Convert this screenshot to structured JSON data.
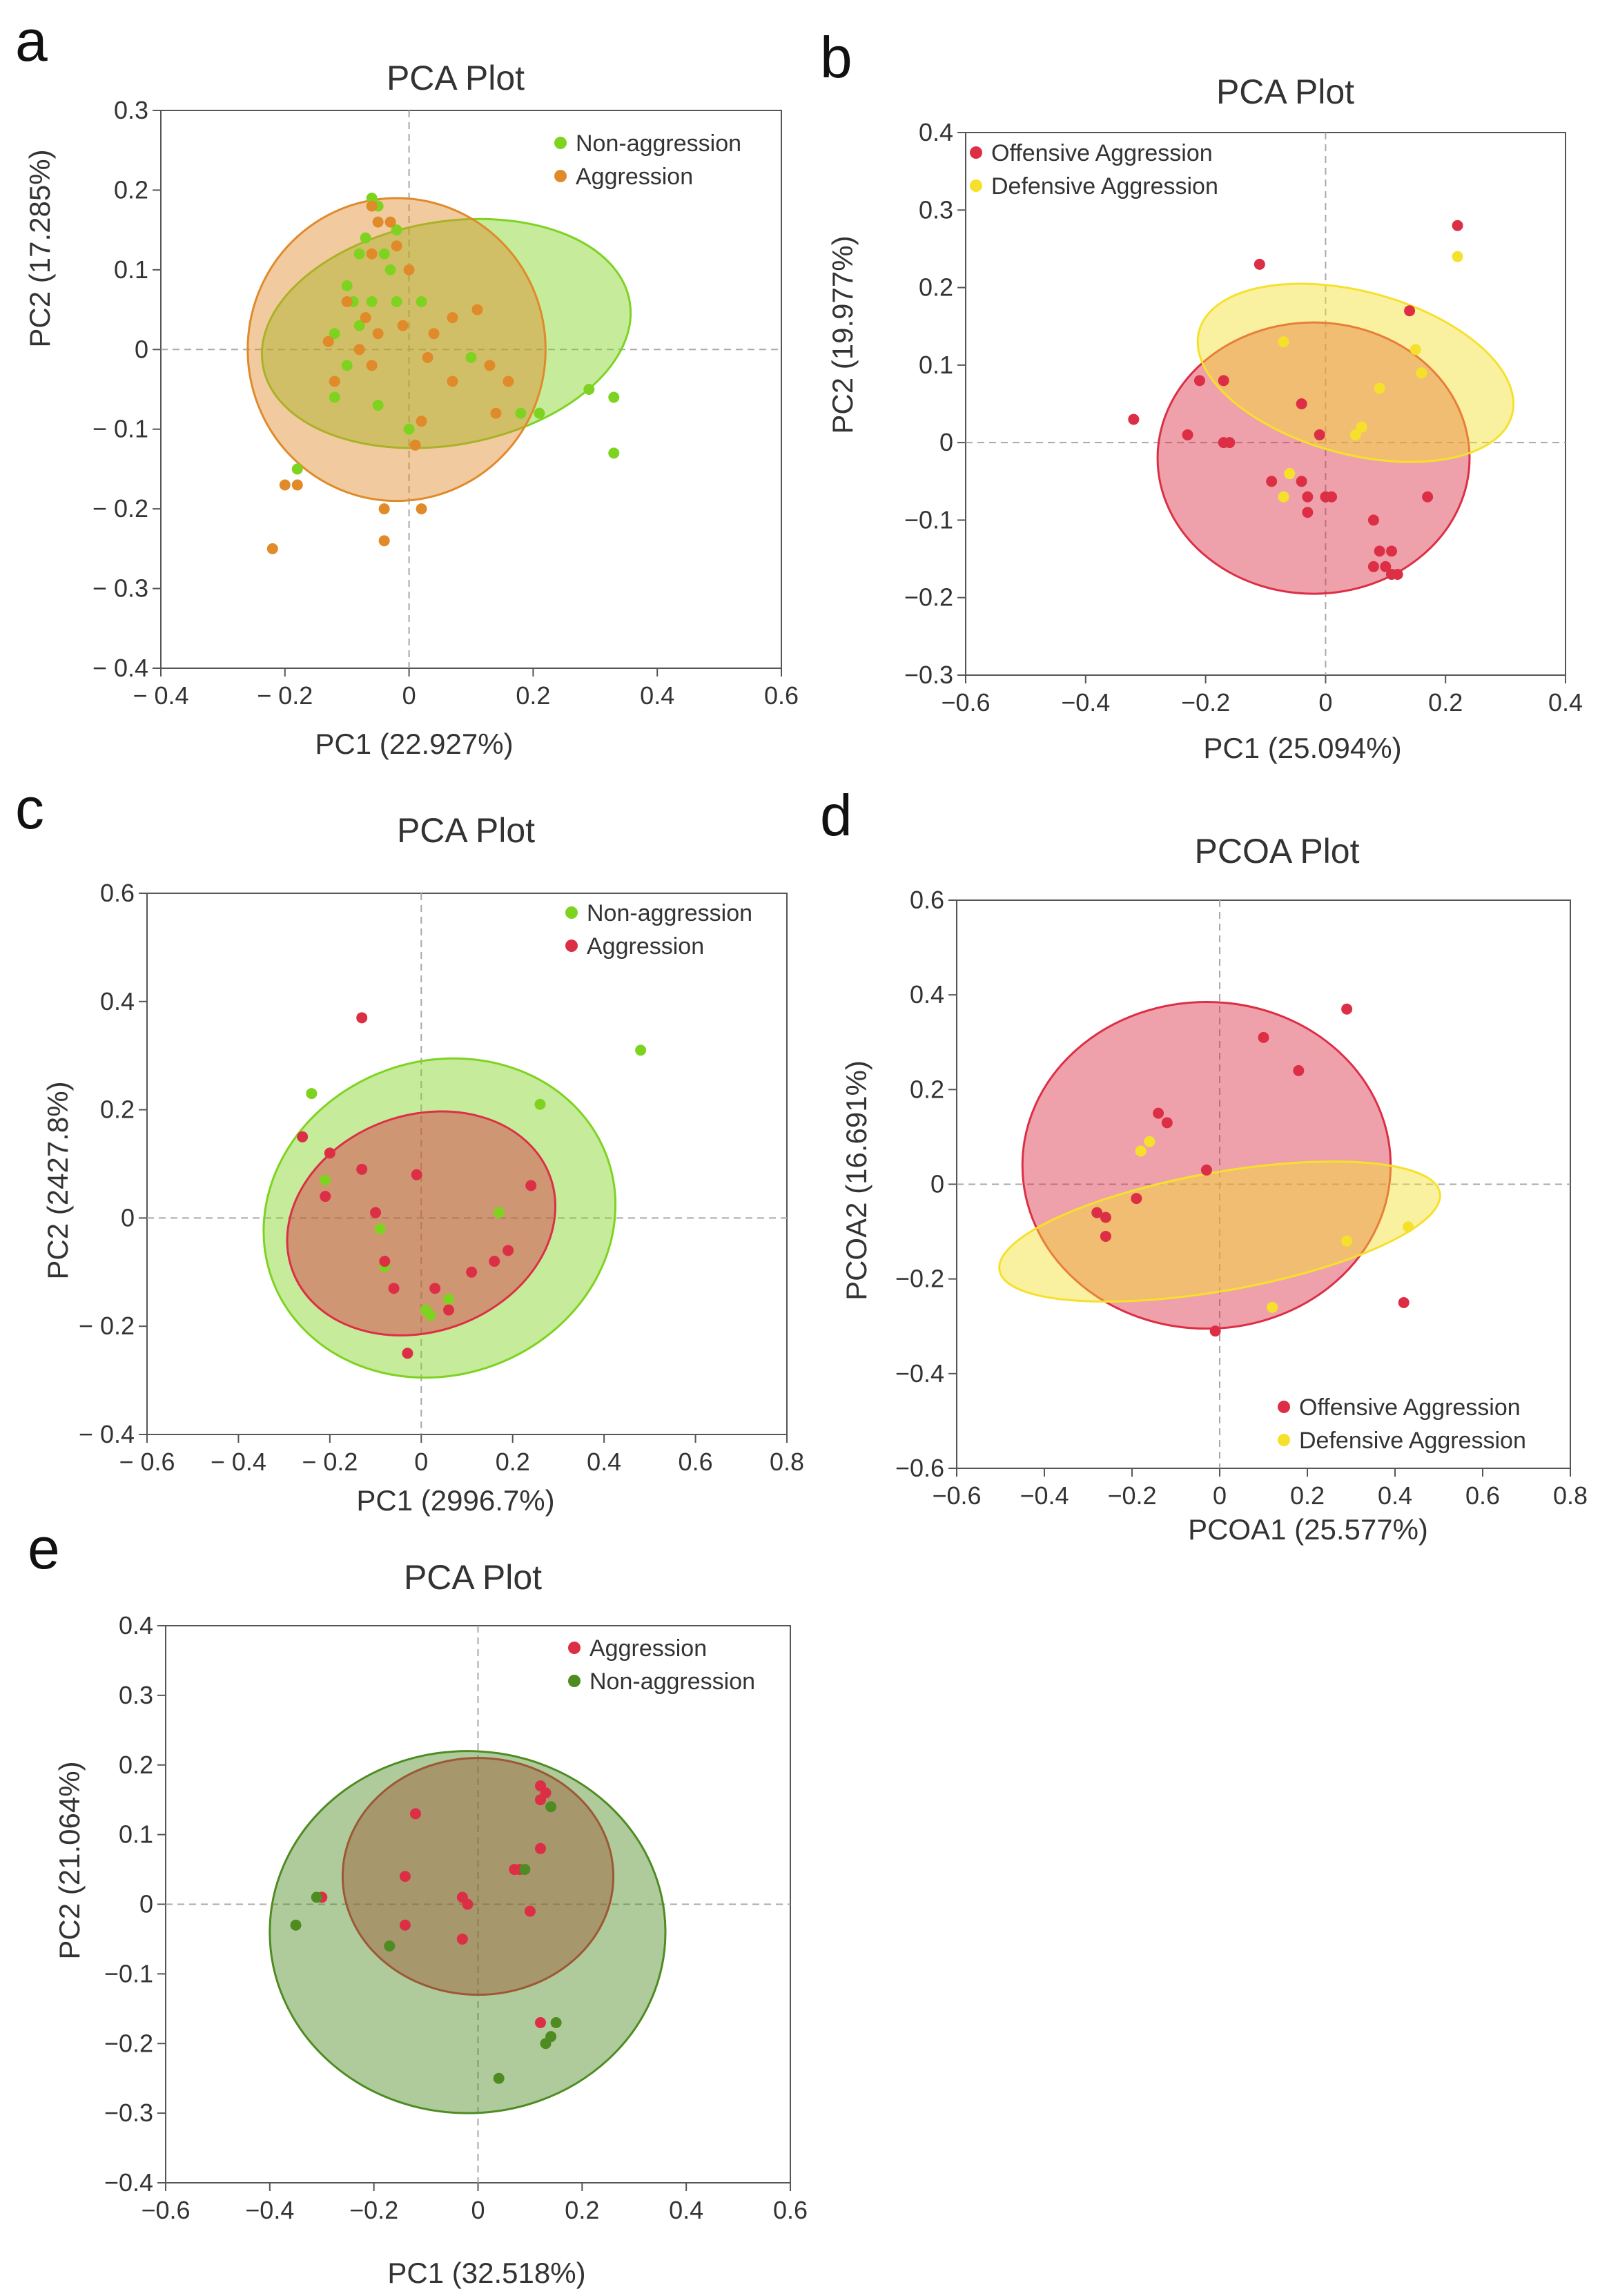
{
  "colors": {
    "green": "#7ed321",
    "orange": "#e08a2a",
    "red": "#dc2f45",
    "yellow": "#f5e12c",
    "dark_green": "#4e8c22",
    "axis": "#555555",
    "origin_line": "#a8a8a8"
  },
  "chart_data": [
    {
      "panel_label": "a",
      "type": "scatter",
      "title": "PCA  Plot",
      "xlabel": "PC1  (22.927%)",
      "ylabel": "PC2  (17.285%)",
      "xlim": [
        -0.4,
        0.6
      ],
      "ylim": [
        -0.4,
        0.3
      ],
      "xticks": [
        -0.4,
        -0.2,
        0,
        0.2,
        0.4,
        0.6
      ],
      "xtick_labels": [
        "− 0.4",
        "− 0.2",
        "0",
        "0.2",
        "0.4",
        "0.6"
      ],
      "yticks": [
        0.3,
        0.2,
        0.1,
        0,
        -0.1,
        -0.2,
        -0.3,
        -0.4
      ],
      "ytick_labels": [
        "0.3",
        "0.2",
        "0.1",
        "0",
        "− 0.1",
        "− 0.2",
        "− 0.3",
        "− 0.4"
      ],
      "legend_position": "top-right",
      "series": [
        {
          "name": "Non-aggression",
          "color": "#7ed321",
          "ellipse": {
            "cx": 0.06,
            "cy": 0.02,
            "rx": 0.3,
            "ry": 0.14,
            "angle": -10
          },
          "points": [
            [
              -0.06,
              0.19
            ],
            [
              -0.05,
              0.18
            ],
            [
              -0.07,
              0.14
            ],
            [
              -0.04,
              0.12
            ],
            [
              -0.02,
              0.15
            ],
            [
              -0.08,
              0.12
            ],
            [
              -0.1,
              0.08
            ],
            [
              -0.03,
              0.1
            ],
            [
              -0.06,
              0.06
            ],
            [
              -0.09,
              0.06
            ],
            [
              -0.08,
              0.03
            ],
            [
              -0.02,
              0.06
            ],
            [
              0.02,
              0.06
            ],
            [
              -0.12,
              0.02
            ],
            [
              -0.1,
              -0.02
            ],
            [
              -0.12,
              -0.06
            ],
            [
              -0.05,
              -0.07
            ],
            [
              0,
              -0.1
            ],
            [
              0.1,
              -0.01
            ],
            [
              0.18,
              -0.08
            ],
            [
              0.21,
              -0.08
            ],
            [
              0.29,
              -0.05
            ],
            [
              0.33,
              -0.06
            ],
            [
              0.33,
              -0.13
            ],
            [
              -0.18,
              -0.15
            ]
          ]
        },
        {
          "name": "Aggression",
          "color": "#e08a2a",
          "ellipse": {
            "cx": -0.02,
            "cy": 0.0,
            "rx": 0.24,
            "ry": 0.19,
            "angle": 0
          },
          "points": [
            [
              -0.06,
              0.18
            ],
            [
              -0.03,
              0.16
            ],
            [
              -0.05,
              0.16
            ],
            [
              -0.02,
              0.13
            ],
            [
              -0.06,
              0.12
            ],
            [
              0,
              0.1
            ],
            [
              -0.1,
              0.06
            ],
            [
              -0.07,
              0.04
            ],
            [
              -0.05,
              0.02
            ],
            [
              -0.01,
              0.03
            ],
            [
              0.04,
              0.02
            ],
            [
              0.07,
              0.04
            ],
            [
              0.11,
              0.05
            ],
            [
              -0.13,
              0.01
            ],
            [
              -0.08,
              0
            ],
            [
              -0.06,
              -0.02
            ],
            [
              0.03,
              -0.01
            ],
            [
              0.13,
              -0.02
            ],
            [
              0.07,
              -0.04
            ],
            [
              -0.12,
              -0.04
            ],
            [
              0.16,
              -0.04
            ],
            [
              0.14,
              -0.08
            ],
            [
              0.02,
              -0.09
            ],
            [
              0.01,
              -0.12
            ],
            [
              -0.2,
              -0.17
            ],
            [
              -0.18,
              -0.17
            ],
            [
              -0.04,
              -0.2
            ],
            [
              0.02,
              -0.2
            ],
            [
              -0.04,
              -0.24
            ],
            [
              -0.22,
              -0.25
            ]
          ]
        }
      ]
    },
    {
      "panel_label": "b",
      "type": "scatter",
      "title": "PCA  Plot",
      "xlabel": "PC1  (25.094%)",
      "ylabel": "PC2  (19.977%)",
      "xlim": [
        -0.6,
        0.4
      ],
      "ylim": [
        -0.3,
        0.4
      ],
      "xticks": [
        -0.6,
        -0.4,
        -0.2,
        0,
        0.2,
        0.4
      ],
      "xtick_labels": [
        "−0.6",
        "−0.4",
        "−0.2",
        "0",
        "0.2",
        "0.4"
      ],
      "yticks": [
        0.4,
        0.3,
        0.2,
        0.1,
        0,
        -0.1,
        -0.2,
        -0.3
      ],
      "ytick_labels": [
        "0.4",
        "0.3",
        "0.2",
        "0.1",
        "0",
        "−0.1",
        "−0.2",
        "−0.3"
      ],
      "legend_position": "top-left",
      "series": [
        {
          "name": "Offensive Aggression",
          "color": "#dc2f45",
          "ellipse": {
            "cx": -0.02,
            "cy": -0.02,
            "rx": 0.26,
            "ry": 0.175,
            "angle": 0
          },
          "points": [
            [
              0.22,
              0.28
            ],
            [
              -0.11,
              0.23
            ],
            [
              0.14,
              0.17
            ],
            [
              -0.21,
              0.08
            ],
            [
              -0.17,
              0.08
            ],
            [
              -0.04,
              0.05
            ],
            [
              -0.32,
              0.03
            ],
            [
              -0.23,
              0.01
            ],
            [
              -0.17,
              0
            ],
            [
              -0.16,
              0
            ],
            [
              -0.01,
              0.01
            ],
            [
              -0.09,
              -0.05
            ],
            [
              -0.04,
              -0.05
            ],
            [
              -0.03,
              -0.07
            ],
            [
              0,
              -0.07
            ],
            [
              0.01,
              -0.07
            ],
            [
              -0.03,
              -0.09
            ],
            [
              0.17,
              -0.07
            ],
            [
              0.08,
              -0.1
            ],
            [
              0.09,
              -0.14
            ],
            [
              0.11,
              -0.14
            ],
            [
              0.1,
              -0.16
            ],
            [
              0.08,
              -0.16
            ],
            [
              0.11,
              -0.17
            ],
            [
              0.12,
              -0.17
            ]
          ]
        },
        {
          "name": "Defensive Aggression",
          "color": "#f5e12c",
          "ellipse": {
            "cx": 0.05,
            "cy": 0.09,
            "rx": 0.27,
            "ry": 0.105,
            "angle": 15
          },
          "points": [
            [
              0.22,
              0.24
            ],
            [
              0.15,
              0.12
            ],
            [
              0.16,
              0.09
            ],
            [
              0.09,
              0.07
            ],
            [
              -0.07,
              0.13
            ],
            [
              0.06,
              0.02
            ],
            [
              0.05,
              0.01
            ],
            [
              -0.06,
              -0.04
            ],
            [
              -0.07,
              -0.07
            ]
          ]
        }
      ]
    },
    {
      "panel_label": "c",
      "type": "scatter",
      "title": "PCA  Plot",
      "xlabel": "PC1  (2996.7%)",
      "ylabel": "PC2  (2427.8%)",
      "xlim": [
        -0.6,
        0.8
      ],
      "ylim": [
        -0.4,
        0.6
      ],
      "xticks": [
        -0.6,
        -0.4,
        -0.2,
        0,
        0.2,
        0.4,
        0.6,
        0.8
      ],
      "xtick_labels": [
        "− 0.6",
        "− 0.4",
        "− 0.2",
        "0",
        "0.2",
        "0.4",
        "0.6",
        "0.8"
      ],
      "yticks": [
        0.6,
        0.4,
        0.2,
        0,
        -0.2,
        -0.4
      ],
      "ytick_labels": [
        "0.6",
        "0.4",
        "0.2",
        "0",
        "− 0.2",
        "− 0.4"
      ],
      "legend_position": "top-right",
      "series": [
        {
          "name": "Non-aggression",
          "color": "#7ed321",
          "ellipse": {
            "cx": 0.04,
            "cy": 0.0,
            "rx": 0.39,
            "ry": 0.29,
            "angle": -20
          },
          "points": [
            [
              0.48,
              0.31
            ],
            [
              -0.24,
              0.23
            ],
            [
              0.26,
              0.21
            ],
            [
              -0.21,
              0.07
            ],
            [
              0.17,
              0.01
            ],
            [
              -0.09,
              -0.02
            ],
            [
              -0.08,
              -0.09
            ],
            [
              0.01,
              -0.17
            ],
            [
              0.06,
              -0.15
            ],
            [
              0.02,
              -0.18
            ]
          ]
        },
        {
          "name": "Aggression",
          "color": "#dc2f45",
          "ellipse": {
            "cx": 0.0,
            "cy": -0.01,
            "rx": 0.3,
            "ry": 0.2,
            "angle": -20
          },
          "points": [
            [
              -0.13,
              0.37
            ],
            [
              -0.26,
              0.15
            ],
            [
              -0.2,
              0.12
            ],
            [
              -0.13,
              0.09
            ],
            [
              -0.01,
              0.08
            ],
            [
              0.24,
              0.06
            ],
            [
              -0.21,
              0.04
            ],
            [
              -0.1,
              0.01
            ],
            [
              0.19,
              -0.06
            ],
            [
              0.16,
              -0.08
            ],
            [
              -0.08,
              -0.08
            ],
            [
              0.11,
              -0.1
            ],
            [
              -0.06,
              -0.13
            ],
            [
              0.03,
              -0.13
            ],
            [
              0.06,
              -0.17
            ],
            [
              -0.03,
              -0.25
            ]
          ]
        }
      ]
    },
    {
      "panel_label": "d",
      "type": "scatter",
      "title": "PCOA  Plot",
      "xlabel": "PCOA1  (25.577%)",
      "ylabel": "PCOA2  (16.691%)",
      "xlim": [
        -0.6,
        0.8
      ],
      "ylim": [
        -0.6,
        0.6
      ],
      "xticks": [
        -0.6,
        -0.4,
        -0.2,
        0,
        0.2,
        0.4,
        0.6,
        0.8
      ],
      "xtick_labels": [
        "−0.6",
        "−0.4",
        "−0.2",
        "0",
        "0.2",
        "0.4",
        "0.6",
        "0.8"
      ],
      "yticks": [
        0.6,
        0.4,
        0.2,
        0,
        -0.2,
        -0.4,
        -0.6
      ],
      "ytick_labels": [
        "0.6",
        "0.4",
        "0.2",
        "0",
        "−0.2",
        "−0.4",
        "−0.6"
      ],
      "legend_position": "bottom-right",
      "series": [
        {
          "name": "Offensive Aggression",
          "color": "#dc2f45",
          "ellipse": {
            "cx": -0.03,
            "cy": 0.04,
            "rx": 0.42,
            "ry": 0.345,
            "angle": 0
          },
          "points": [
            [
              0.29,
              0.37
            ],
            [
              0.1,
              0.31
            ],
            [
              0.18,
              0.24
            ],
            [
              -0.14,
              0.15
            ],
            [
              -0.12,
              0.13
            ],
            [
              -0.03,
              0.03
            ],
            [
              -0.19,
              -0.03
            ],
            [
              -0.28,
              -0.06
            ],
            [
              -0.26,
              -0.07
            ],
            [
              -0.26,
              -0.11
            ],
            [
              0.42,
              -0.25
            ],
            [
              -0.01,
              -0.31
            ]
          ]
        },
        {
          "name": "Defensive Aggression",
          "color": "#f5e12c",
          "ellipse": {
            "cx": 0.0,
            "cy": -0.1,
            "rx": 0.51,
            "ry": 0.125,
            "angle": -10
          },
          "points": [
            [
              -0.16,
              0.09
            ],
            [
              -0.18,
              0.07
            ],
            [
              0.43,
              -0.09
            ],
            [
              0.29,
              -0.12
            ],
            [
              0.12,
              -0.26
            ]
          ]
        }
      ]
    },
    {
      "panel_label": "e",
      "type": "scatter",
      "title": "PCA  Plot",
      "xlabel": "PC1  (32.518%)",
      "ylabel": "PC2  (21.064%)",
      "xlim": [
        -0.6,
        0.6
      ],
      "ylim": [
        -0.4,
        0.4
      ],
      "xticks": [
        -0.6,
        -0.4,
        -0.2,
        0,
        0.2,
        0.4,
        0.6
      ],
      "xtick_labels": [
        "−0.6",
        "−0.4",
        "−0.2",
        "0",
        "0.2",
        "0.4",
        "0.6"
      ],
      "yticks": [
        0.4,
        0.3,
        0.2,
        0.1,
        0,
        -0.1,
        -0.2,
        -0.3,
        -0.4
      ],
      "ytick_labels": [
        "0.4",
        "0.3",
        "0.2",
        "0.1",
        "0",
        "−0.1",
        "−0.2",
        "−0.3",
        "−0.4"
      ],
      "legend_position": "top-right",
      "series": [
        {
          "name": "Aggression",
          "color": "#dc2f45",
          "ellipse": {
            "cx": 0.0,
            "cy": 0.04,
            "rx": 0.26,
            "ry": 0.17,
            "angle": 0
          },
          "points": [
            [
              0.12,
              0.17
            ],
            [
              0.12,
              0.15
            ],
            [
              0.13,
              0.16
            ],
            [
              -0.12,
              0.13
            ],
            [
              0.12,
              0.08
            ],
            [
              0.07,
              0.05
            ],
            [
              0.08,
              0.05
            ],
            [
              -0.14,
              0.04
            ],
            [
              -0.03,
              0.01
            ],
            [
              -0.02,
              0
            ],
            [
              0.1,
              -0.01
            ],
            [
              -0.14,
              -0.03
            ],
            [
              -0.03,
              -0.05
            ],
            [
              -0.3,
              0.01
            ],
            [
              0.12,
              -0.17
            ]
          ]
        },
        {
          "name": "Non-aggression",
          "color": "#4e8c22",
          "ellipse": {
            "cx": -0.02,
            "cy": -0.04,
            "rx": 0.38,
            "ry": 0.26,
            "angle": 0
          },
          "points": [
            [
              0.14,
              0.14
            ],
            [
              0.09,
              0.05
            ],
            [
              -0.31,
              0.01
            ],
            [
              -0.35,
              -0.03
            ],
            [
              -0.17,
              -0.06
            ],
            [
              0.15,
              -0.17
            ],
            [
              0.13,
              -0.2
            ],
            [
              0.14,
              -0.19
            ],
            [
              0.04,
              -0.25
            ]
          ]
        }
      ]
    }
  ]
}
